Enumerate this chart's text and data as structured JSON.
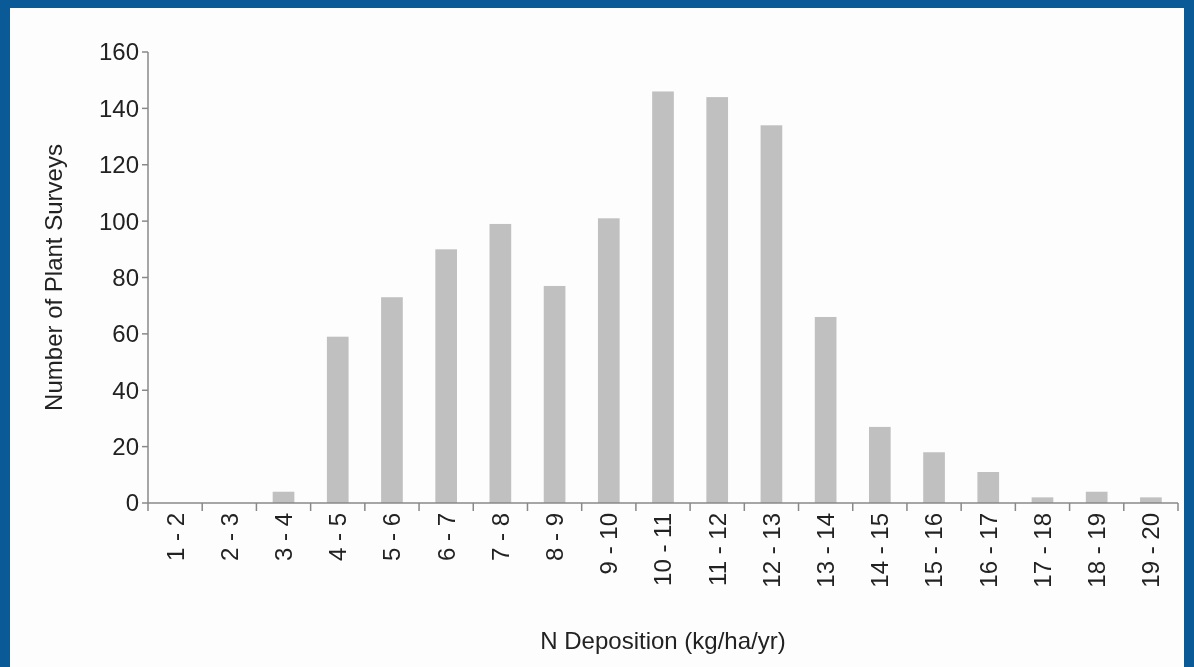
{
  "chart_data": {
    "type": "bar",
    "xlabel": "N Deposition (kg/ha/yr)",
    "ylabel": "Number of Plant Surveys",
    "categories": [
      "1 - 2",
      "2 - 3",
      "3 - 4",
      "4 - 5",
      "5 - 6",
      "6 - 7",
      "7 - 8",
      "8 - 9",
      "9 - 10",
      "10 - 11",
      "11 - 12",
      "12 - 13",
      "13 - 14",
      "14 - 15",
      "15 - 16",
      "16 - 17",
      "17 - 18",
      "18 - 19",
      "19 - 20"
    ],
    "values": [
      0,
      0,
      4,
      59,
      73,
      90,
      99,
      77,
      101,
      146,
      144,
      134,
      66,
      27,
      18,
      11,
      2,
      4,
      2
    ],
    "color": "#c0c0c0",
    "ylim": [
      0,
      160
    ],
    "yticks": [
      0,
      20,
      40,
      60,
      80,
      100,
      120,
      140,
      160
    ]
  }
}
